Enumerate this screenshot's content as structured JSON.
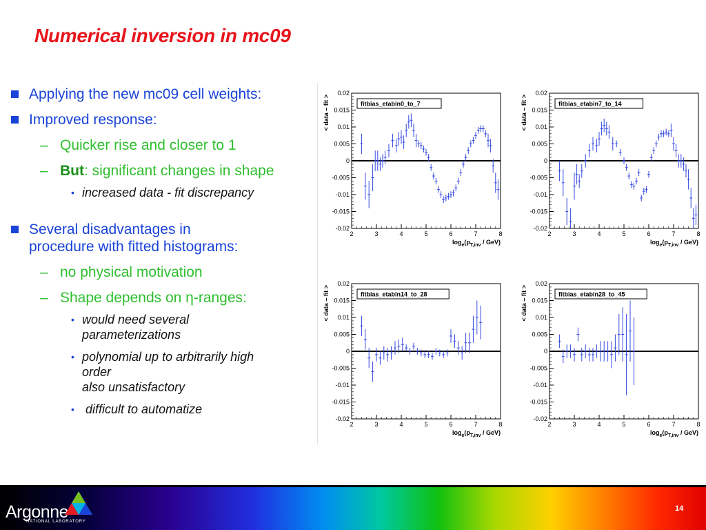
{
  "slide": {
    "title": "Numerical inversion in mc09",
    "page_number": "14"
  },
  "bullets": {
    "b1": "Applying the new mc09 cell weights:",
    "b2": "Improved response:",
    "b2_1": "Quicker rise and closer to 1",
    "b2_2_bold": "But",
    "b2_2_rest": ": significant changes in shape",
    "b2_2_1": "increased data - fit discrepancy",
    "b3_line1": "Several disadvantages in",
    "b3_line2": "procedure with fitted histograms:",
    "b3_1": "no physical motivation",
    "b3_2": "Shape depends on η-ranges:",
    "b3_2_1_line1": "would need several",
    "b3_2_1_line2": "parameterizations",
    "b3_2_2_line1": "polynomial up to arbitrarily high",
    "b3_2_2_line2": "order",
    "b3_2_2_line3": "also unsatisfactory",
    "b3_2_3": "difficult to automatize",
    "dash": "–",
    "bullet_dot": "•"
  },
  "footer": {
    "logo_name": "Argonne",
    "logo_sub": "NATIONAL LABORATORY",
    "logo_colors": [
      "#00b4e6",
      "#78be20",
      "#e31b23",
      "#1a44d8"
    ]
  },
  "chart_data": [
    {
      "type": "scatter",
      "legend": "fitbias_etabin0_to_7",
      "xlabel": "log_e(p_T,inv / GeV)",
      "ylabel": "< data – fit >",
      "xlim": [
        2,
        8
      ],
      "ylim": [
        -0.02,
        0.02
      ],
      "xticks": [
        "2",
        "3",
        "4",
        "5",
        "6",
        "7",
        "8"
      ],
      "yticks": [
        "0.02",
        "0.015",
        "0.01",
        "0.005",
        "0",
        "-0.005",
        "-0.01",
        "-0.015",
        "-0.02"
      ],
      "x": [
        2.4,
        2.55,
        2.7,
        2.85,
        2.95,
        3.05,
        3.15,
        3.25,
        3.35,
        3.5,
        3.65,
        3.8,
        3.9,
        4.0,
        4.1,
        4.2,
        4.3,
        4.4,
        4.5,
        4.6,
        4.7,
        4.8,
        4.9,
        5.0,
        5.1,
        5.2,
        5.3,
        5.4,
        5.5,
        5.6,
        5.7,
        5.8,
        5.9,
        6.0,
        6.1,
        6.2,
        6.3,
        6.4,
        6.5,
        6.6,
        6.7,
        6.8,
        6.9,
        7.0,
        7.1,
        7.2,
        7.3,
        7.4,
        7.5,
        7.6,
        7.7,
        7.8,
        7.9
      ],
      "y": [
        0.005,
        -0.0075,
        -0.01,
        -0.005,
        0.0,
        0.0,
        -0.001,
        0.0,
        0.001,
        0.003,
        0.006,
        0.0045,
        0.0065,
        0.007,
        0.0055,
        0.009,
        0.0115,
        0.012,
        0.009,
        0.006,
        0.005,
        0.0045,
        0.0035,
        0.0025,
        0.001,
        -0.002,
        -0.0045,
        -0.006,
        -0.0085,
        -0.01,
        -0.0115,
        -0.011,
        -0.0105,
        -0.01,
        -0.0095,
        -0.008,
        -0.006,
        -0.0035,
        -0.001,
        0.001,
        0.003,
        0.005,
        0.006,
        0.0075,
        0.009,
        0.0095,
        0.0095,
        0.008,
        0.006,
        0.0045,
        -0.0015,
        -0.0065,
        -0.0085
      ],
      "err": [
        0.003,
        0.004,
        0.004,
        0.004,
        0.003,
        0.003,
        0.002,
        0.002,
        0.002,
        0.002,
        0.002,
        0.002,
        0.002,
        0.002,
        0.002,
        0.002,
        0.002,
        0.002,
        0.002,
        0.002,
        0.001,
        0.001,
        0.001,
        0.001,
        0.001,
        0.001,
        0.001,
        0.001,
        0.001,
        0.001,
        0.001,
        0.001,
        0.001,
        0.001,
        0.001,
        0.001,
        0.001,
        0.001,
        0.001,
        0.001,
        0.001,
        0.001,
        0.001,
        0.001,
        0.001,
        0.001,
        0.001,
        0.001,
        0.002,
        0.002,
        0.002,
        0.003,
        0.003
      ]
    },
    {
      "type": "scatter",
      "legend": "fitbias_etabin7_to_14",
      "xlabel": "log_e(p_T,inv / GeV)",
      "ylabel": "< data – fit >",
      "xlim": [
        2,
        8
      ],
      "ylim": [
        -0.02,
        0.02
      ],
      "xticks": [
        "2",
        "3",
        "4",
        "5",
        "6",
        "7",
        "8"
      ],
      "yticks": [
        "0.02",
        "0.015",
        "0.01",
        "0.005",
        "0",
        "-0.005",
        "-0.01",
        "-0.015",
        "-0.02"
      ],
      "x": [
        2.4,
        2.55,
        2.7,
        2.85,
        3.0,
        3.1,
        3.2,
        3.3,
        3.45,
        3.6,
        3.75,
        3.9,
        4.0,
        4.1,
        4.2,
        4.3,
        4.4,
        4.55,
        4.7,
        4.85,
        5.0,
        5.1,
        5.2,
        5.3,
        5.4,
        5.5,
        5.6,
        5.7,
        5.8,
        5.9,
        6.0,
        6.1,
        6.2,
        6.3,
        6.4,
        6.5,
        6.6,
        6.7,
        6.8,
        6.9,
        7.0,
        7.1,
        7.2,
        7.3,
        7.4,
        7.5,
        7.6,
        7.7,
        7.8,
        7.9
      ],
      "y": [
        -0.003,
        -0.0065,
        -0.015,
        -0.018,
        -0.0075,
        -0.004,
        -0.006,
        -0.003,
        0.0,
        0.003,
        0.005,
        0.0045,
        0.0065,
        0.0095,
        0.0105,
        0.0095,
        0.0085,
        0.005,
        0.005,
        0.0025,
        0.0,
        -0.002,
        -0.0045,
        -0.007,
        -0.0075,
        -0.006,
        -0.0035,
        -0.011,
        -0.009,
        -0.0085,
        -0.004,
        0.001,
        0.003,
        0.005,
        0.007,
        0.008,
        0.008,
        0.0085,
        0.008,
        0.009,
        0.005,
        0.003,
        0.0,
        0.0,
        -0.001,
        -0.003,
        -0.0055,
        -0.011,
        -0.017,
        -0.016
      ],
      "err": [
        0.003,
        0.004,
        0.004,
        0.004,
        0.004,
        0.003,
        0.002,
        0.002,
        0.002,
        0.002,
        0.002,
        0.002,
        0.002,
        0.002,
        0.002,
        0.002,
        0.002,
        0.002,
        0.001,
        0.001,
        0.001,
        0.001,
        0.001,
        0.001,
        0.001,
        0.001,
        0.001,
        0.001,
        0.001,
        0.001,
        0.001,
        0.001,
        0.001,
        0.001,
        0.001,
        0.001,
        0.001,
        0.001,
        0.001,
        0.002,
        0.002,
        0.002,
        0.002,
        0.002,
        0.002,
        0.002,
        0.003,
        0.003,
        0.003,
        0.003
      ]
    },
    {
      "type": "scatter",
      "legend": "fitbias_etabin14_to_28",
      "xlabel": "log_e(p_T,inv / GeV)",
      "ylabel": "< data – fit >",
      "xlim": [
        2,
        8
      ],
      "ylim": [
        -0.02,
        0.02
      ],
      "xticks": [
        "2",
        "3",
        "4",
        "5",
        "6",
        "7",
        "8"
      ],
      "yticks": [
        "0.02",
        "0.015",
        "0.01",
        "0.005",
        "0",
        "-0.005",
        "-0.01",
        "-0.015",
        "-0.02"
      ],
      "x": [
        2.4,
        2.55,
        2.7,
        2.85,
        3.0,
        3.15,
        3.3,
        3.45,
        3.6,
        3.75,
        3.9,
        4.05,
        4.2,
        4.35,
        4.5,
        4.65,
        4.8,
        4.95,
        5.1,
        5.25,
        5.4,
        5.55,
        5.7,
        5.85,
        6.0,
        6.15,
        6.3,
        6.45,
        6.6,
        6.75,
        6.9,
        7.05,
        7.2
      ],
      "y": [
        0.0075,
        0.0035,
        -0.002,
        -0.006,
        -0.001,
        -0.002,
        -0.0005,
        -0.001,
        -0.0005,
        0.001,
        0.0015,
        0.002,
        0.001,
        0.0,
        0.0015,
        0.0,
        -0.0005,
        -0.001,
        -0.001,
        -0.0015,
        0.0,
        -0.0005,
        -0.001,
        -0.0005,
        0.0045,
        0.003,
        0.001,
        -0.0005,
        0.0025,
        0.0025,
        0.0065,
        0.01,
        0.0085
      ],
      "err": [
        0.003,
        0.003,
        0.003,
        0.003,
        0.002,
        0.002,
        0.002,
        0.002,
        0.002,
        0.002,
        0.002,
        0.002,
        0.001,
        0.001,
        0.001,
        0.001,
        0.001,
        0.001,
        0.001,
        0.001,
        0.001,
        0.001,
        0.001,
        0.001,
        0.002,
        0.002,
        0.002,
        0.002,
        0.003,
        0.003,
        0.004,
        0.005,
        0.005
      ]
    },
    {
      "type": "scatter",
      "legend": "fitbias_etabin28_to_45",
      "xlabel": "log_e(p_T,inv / GeV)",
      "ylabel": "< data – fit >",
      "xlim": [
        2,
        8
      ],
      "ylim": [
        -0.02,
        0.02
      ],
      "xticks": [
        "2",
        "3",
        "4",
        "5",
        "6",
        "7",
        "8"
      ],
      "yticks": [
        "0.02",
        "0.015",
        "0.01",
        "0.005",
        "0",
        "-0.005",
        "-0.01",
        "-0.015",
        "-0.02"
      ],
      "x": [
        2.4,
        2.55,
        2.7,
        2.85,
        3.0,
        3.15,
        3.3,
        3.45,
        3.6,
        3.75,
        3.9,
        4.05,
        4.2,
        4.35,
        4.5,
        4.65,
        4.8,
        4.95,
        5.1,
        5.25,
        5.4
      ],
      "y": [
        0.003,
        -0.0015,
        0.0,
        0.0,
        -0.001,
        0.005,
        -0.001,
        0.0,
        -0.001,
        -0.001,
        0.0,
        0.0,
        0.0,
        0.0,
        -0.001,
        0.001,
        0.005,
        0.005,
        -0.001,
        0.006,
        0.0
      ],
      "err": [
        0.002,
        0.002,
        0.002,
        0.002,
        0.002,
        0.002,
        0.002,
        0.002,
        0.002,
        0.002,
        0.002,
        0.003,
        0.003,
        0.003,
        0.004,
        0.004,
        0.006,
        0.008,
        0.012,
        0.009,
        0.01
      ]
    }
  ]
}
